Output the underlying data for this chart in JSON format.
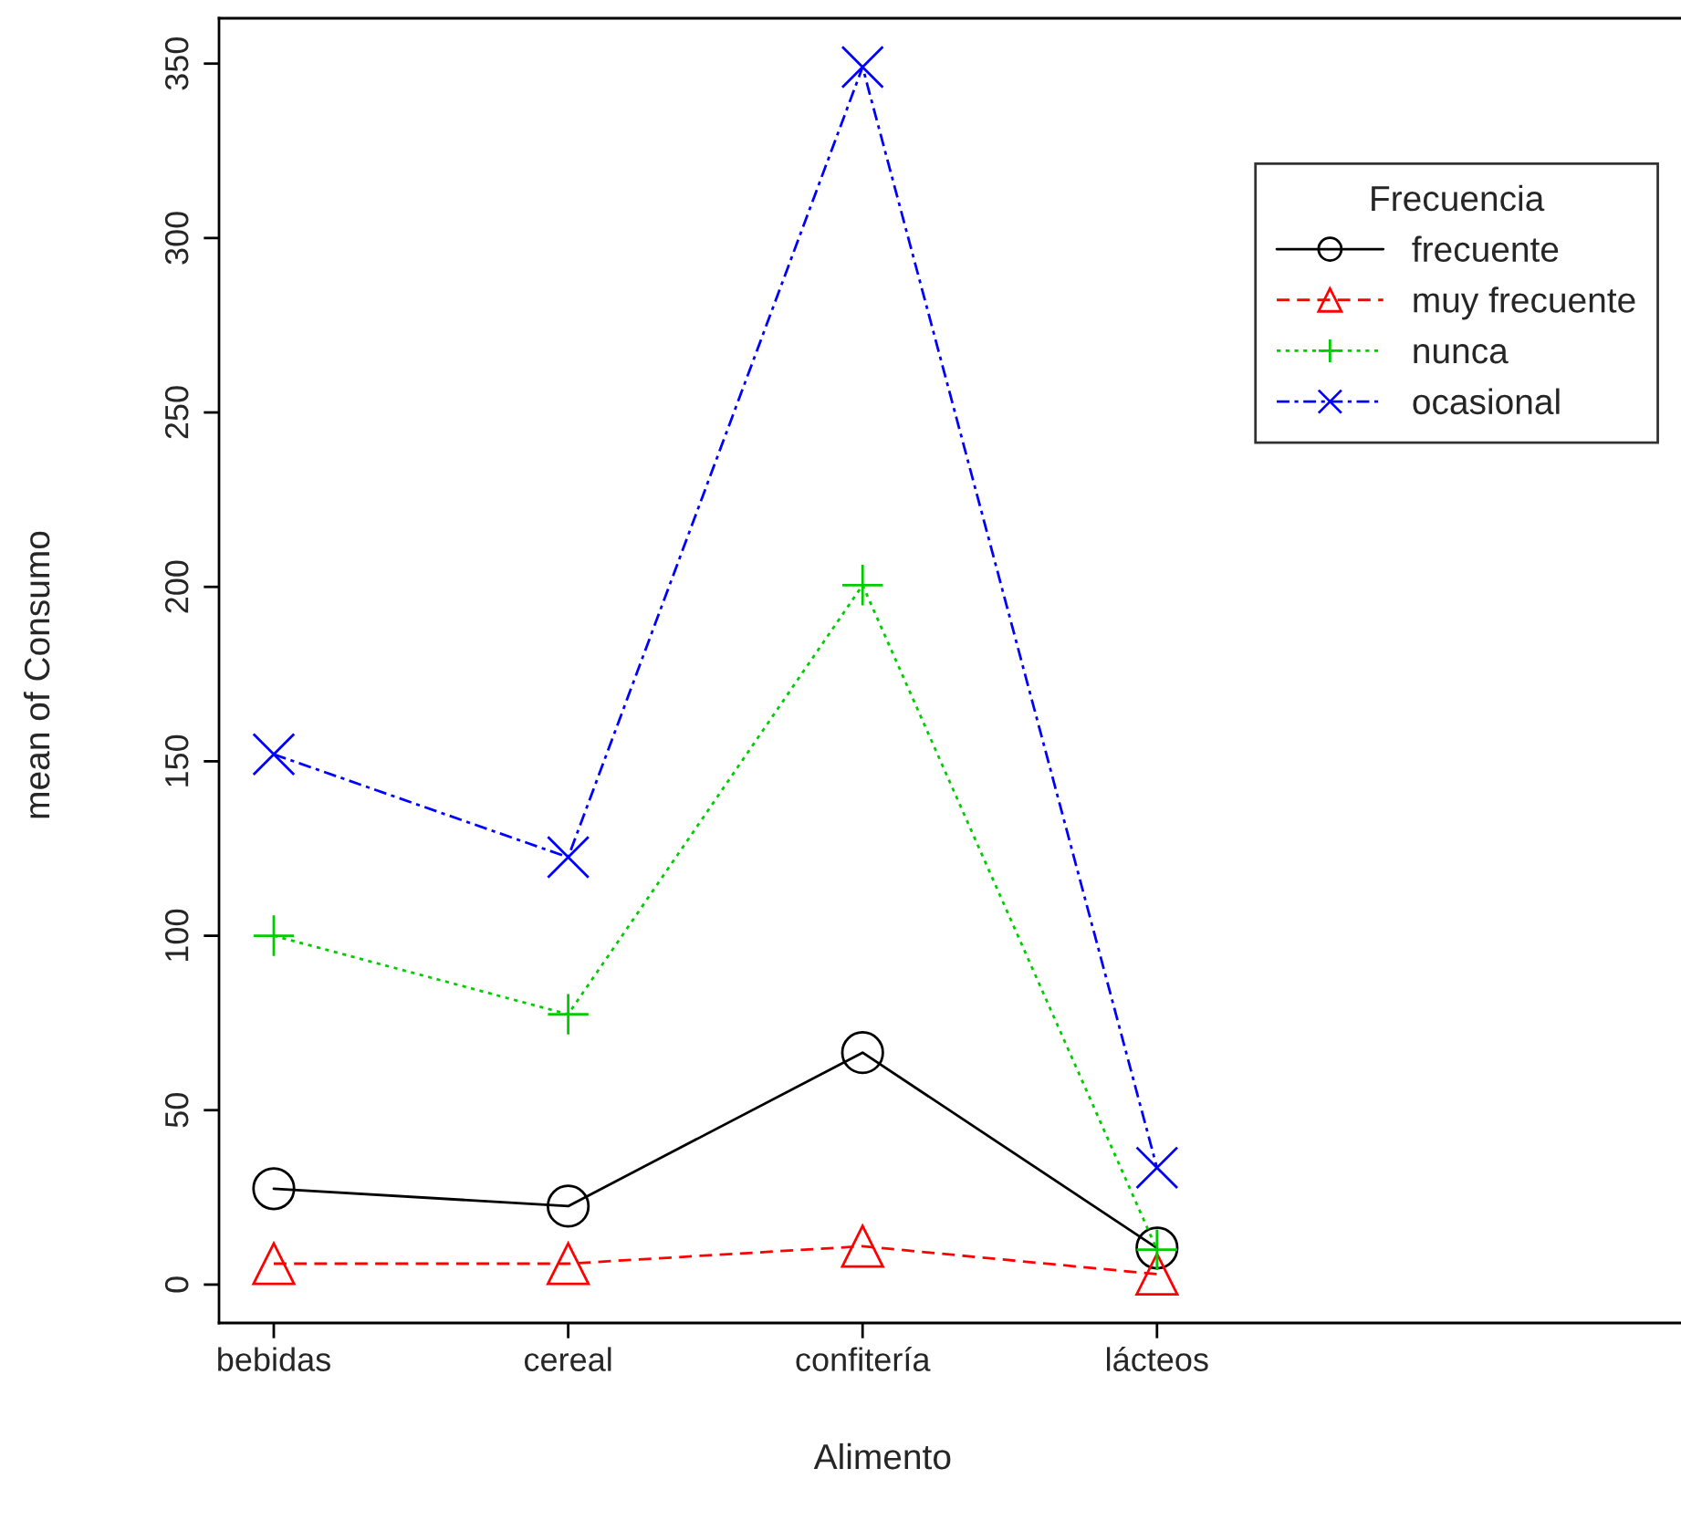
{
  "chart_data": {
    "type": "line",
    "xlabel": "Alimento",
    "ylabel": "mean of Consumo",
    "legend_title": "Frecuencia",
    "legend": "top right",
    "grid": false,
    "categories": [
      "bebidas",
      "cereal",
      "confitería",
      "lácteos"
    ],
    "ylim": [
      -11,
      363
    ],
    "yticks": [
      0,
      50,
      100,
      150,
      200,
      250,
      300,
      350
    ],
    "series": [
      {
        "name": "frecuente",
        "color": "#000000",
        "marker": "circle",
        "line_style": "solid",
        "values": [
          27.5,
          22.5,
          66.5,
          10.5
        ]
      },
      {
        "name": "muy frecuente",
        "color": "#ff0000",
        "marker": "triangle",
        "line_style": "dashed",
        "values": [
          6,
          6,
          11,
          3
        ]
      },
      {
        "name": "nunca",
        "color": "#00cd00",
        "marker": "cross",
        "line_style": "dotted",
        "values": [
          100,
          77.5,
          200.5,
          10
        ]
      },
      {
        "name": "ocasional",
        "color": "#0000ff",
        "marker": "x",
        "line_style": "dashdot",
        "values": [
          152,
          122.5,
          349,
          33.5
        ]
      }
    ]
  }
}
